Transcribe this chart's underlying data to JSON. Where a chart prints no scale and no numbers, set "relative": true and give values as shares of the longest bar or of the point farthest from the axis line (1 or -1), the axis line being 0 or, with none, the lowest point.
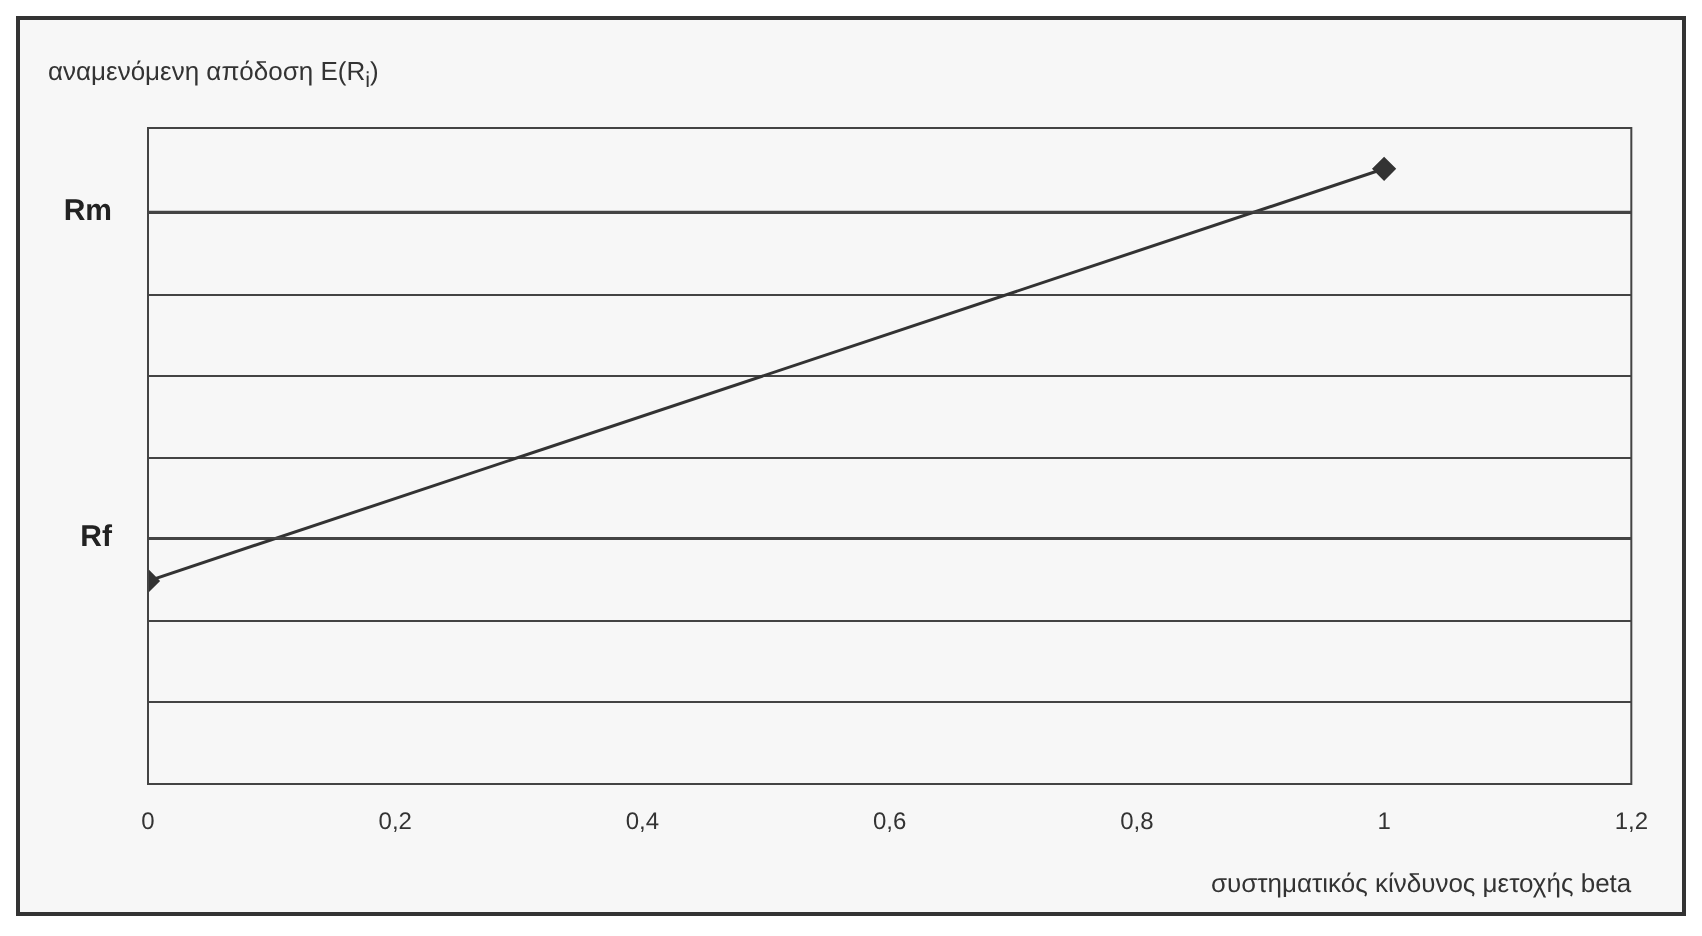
{
  "chart_data": {
    "type": "line",
    "ylabel": "αναμενόμενη απόδοση E(R$_{i}$)",
    "xlabel": "συστηματικός κίνδυνος μετοχής beta",
    "x": [
      0,
      1
    ],
    "series": [
      {
        "color": "#333333",
        "values": [
          0.33,
          1
        ]
      }
    ],
    "relative": true,
    "xlim": [
      0,
      1.2
    ],
    "xticks": [
      0,
      {
        "value": 0.2,
        "label": "0,2"
      },
      {
        "value": 0.4,
        "label": "0,4"
      },
      {
        "value": 0.6,
        "label": "0,6"
      },
      {
        "value": 0.8,
        "label": "0,8"
      },
      1,
      {
        "value": 1.2,
        "label": "1,2"
      }
    ],
    "ref_lines": [
      {
        "axis": "y",
        "value": 0.4,
        "label": "Rf"
      },
      {
        "axis": "y",
        "value": 0.93,
        "label": "Rm"
      }
    ],
    "grid": "y",
    "marker": "diamond",
    "line_style": "solid",
    "legend": false
  }
}
